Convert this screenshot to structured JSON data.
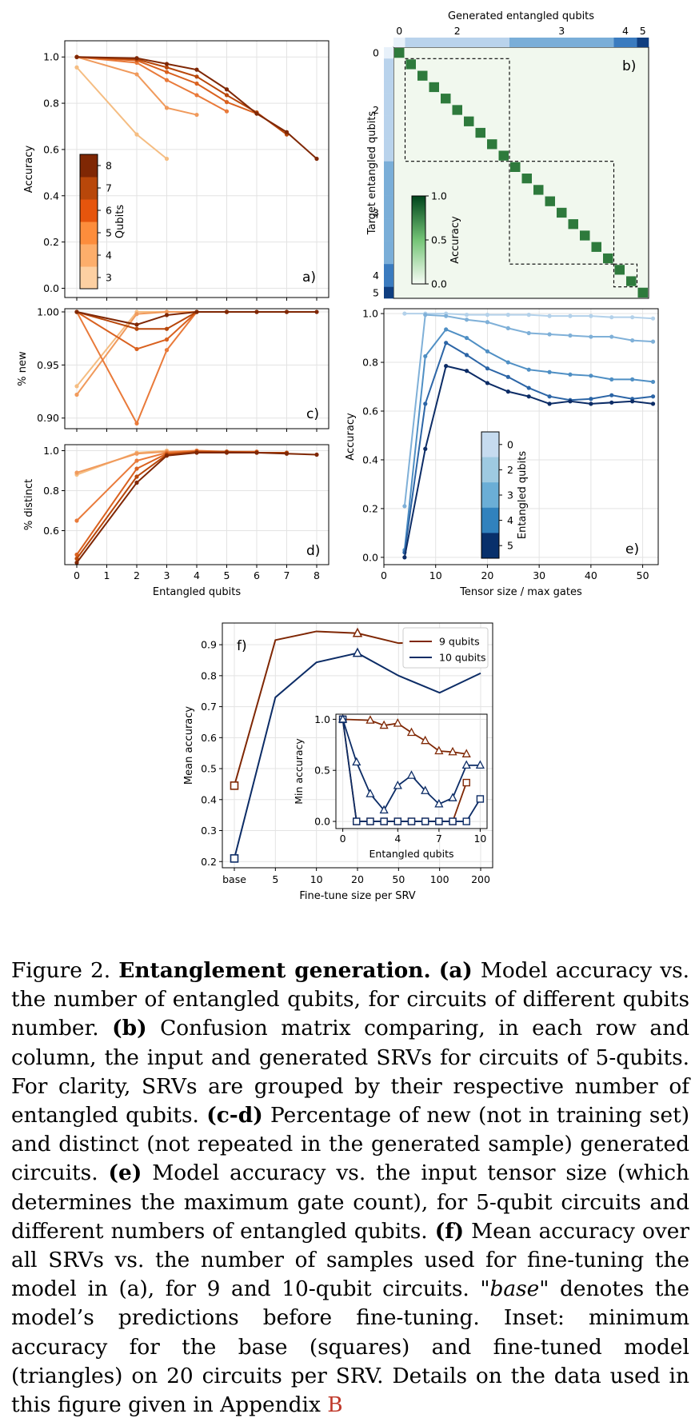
{
  "chart_data": [
    {
      "id": "a",
      "type": "line",
      "panel_label": "a)",
      "xlabel": "",
      "ylabel": "Accuracy",
      "xlim": [
        -0.4,
        8.4
      ],
      "ylim": [
        -0.04,
        1.07
      ],
      "yticks": [
        0.0,
        0.2,
        0.4,
        0.6,
        0.8,
        1.0
      ],
      "grid": true,
      "colorbar": {
        "label": "Qubits",
        "ticks": [
          "3",
          "4",
          "5",
          "6",
          "7",
          "8"
        ],
        "placement": "left-center",
        "colors": [
          "#fdd0a2",
          "#fdae6b",
          "#fd8d3c",
          "#e6550d",
          "#b8470a",
          "#7f2704"
        ]
      },
      "series": [
        {
          "name": "3",
          "color": "#f5bd82",
          "x": [
            0,
            2,
            3
          ],
          "y": [
            0.955,
            0.665,
            0.56
          ]
        },
        {
          "name": "4",
          "color": "#f09a5c",
          "x": [
            0,
            2,
            3,
            4
          ],
          "y": [
            1.0,
            0.925,
            0.78,
            0.75
          ]
        },
        {
          "name": "5",
          "color": "#e97a3a",
          "x": [
            0,
            2,
            3,
            4,
            5
          ],
          "y": [
            1.0,
            0.975,
            0.9,
            0.835,
            0.765
          ]
        },
        {
          "name": "6",
          "color": "#d9611f",
          "x": [
            0,
            2,
            3,
            4,
            5,
            6
          ],
          "y": [
            1.0,
            0.985,
            0.935,
            0.885,
            0.805,
            0.755
          ]
        },
        {
          "name": "7",
          "color": "#b8470a",
          "x": [
            0,
            2,
            3,
            4,
            5,
            6,
            7
          ],
          "y": [
            1.0,
            0.99,
            0.955,
            0.915,
            0.835,
            0.76,
            0.665
          ]
        },
        {
          "name": "8",
          "color": "#7f2704",
          "x": [
            0,
            2,
            3,
            4,
            5,
            6,
            7,
            8
          ],
          "y": [
            1.0,
            0.995,
            0.97,
            0.945,
            0.86,
            0.755,
            0.675,
            0.56
          ]
        }
      ]
    },
    {
      "id": "b",
      "type": "heatmap",
      "panel_label": "b)",
      "xlabel": "Generated entangled qubits",
      "ylabel": "Target entangled qubits",
      "size": 22,
      "group_ticks": [
        "0",
        "2",
        "3",
        "4",
        "5"
      ],
      "groups": [
        [
          0,
          1
        ],
        [
          1,
          10
        ],
        [
          10,
          19
        ],
        [
          19,
          21
        ],
        [
          21,
          22
        ]
      ],
      "diagonal_accuracy": 1.0,
      "colorbar": {
        "label": "Accuracy",
        "ticks": [
          "0.0",
          "0.5",
          "1.0"
        ],
        "placement": "left-center"
      }
    },
    {
      "id": "c",
      "type": "line",
      "panel_label": "c)",
      "xlabel": "",
      "ylabel": "% new",
      "xlim": [
        -0.4,
        8.4
      ],
      "ylim": [
        0.89,
        1.003
      ],
      "yticks": [
        0.9,
        0.95,
        1.0
      ],
      "grid": true,
      "series": [
        {
          "name": "3",
          "color": "#f5bd82",
          "x": [
            0,
            2,
            3
          ],
          "y": [
            0.93,
            1.0,
            1.0
          ]
        },
        {
          "name": "4",
          "color": "#f09a5c",
          "x": [
            0,
            2,
            3,
            4
          ],
          "y": [
            0.922,
            0.998,
            1.0,
            1.0
          ]
        },
        {
          "name": "5",
          "color": "#e97a3a",
          "x": [
            0,
            2,
            3,
            4,
            5
          ],
          "y": [
            1.0,
            0.895,
            0.964,
            1.0,
            1.0
          ]
        },
        {
          "name": "6",
          "color": "#d9611f",
          "x": [
            0,
            2,
            3,
            4,
            5,
            6
          ],
          "y": [
            1.0,
            0.965,
            0.974,
            1.0,
            1.0,
            1.0
          ]
        },
        {
          "name": "7",
          "color": "#b8470a",
          "x": [
            0,
            2,
            3,
            4,
            5,
            6,
            7
          ],
          "y": [
            1.0,
            0.984,
            0.984,
            1.0,
            1.0,
            1.0,
            1.0
          ]
        },
        {
          "name": "8",
          "color": "#7f2704",
          "x": [
            0,
            2,
            3,
            4,
            5,
            6,
            7,
            8
          ],
          "y": [
            1.0,
            0.988,
            0.997,
            1.0,
            1.0,
            1.0,
            1.0,
            1.0
          ]
        }
      ]
    },
    {
      "id": "d",
      "type": "line",
      "panel_label": "d)",
      "xlabel": "Entangled qubits",
      "ylabel": "% distinct",
      "xlim": [
        -0.4,
        8.4
      ],
      "ylim": [
        0.43,
        1.03
      ],
      "yticks": [
        0.6,
        0.8,
        1.0
      ],
      "xticks": [
        0,
        1,
        2,
        3,
        4,
        5,
        6,
        7,
        8
      ],
      "grid": true,
      "series": [
        {
          "name": "3",
          "color": "#f5bd82",
          "x": [
            0,
            2,
            3
          ],
          "y": [
            0.88,
            0.99,
            1.0
          ]
        },
        {
          "name": "4",
          "color": "#f09a5c",
          "x": [
            0,
            2,
            3,
            4
          ],
          "y": [
            0.89,
            0.985,
            0.995,
            1.0
          ]
        },
        {
          "name": "5",
          "color": "#e97a3a",
          "x": [
            0,
            2,
            3,
            4,
            5
          ],
          "y": [
            0.65,
            0.95,
            0.99,
            1.0,
            0.995
          ]
        },
        {
          "name": "6",
          "color": "#d9611f",
          "x": [
            0,
            2,
            3,
            4,
            5,
            6
          ],
          "y": [
            0.48,
            0.91,
            0.985,
            0.995,
            0.995,
            0.995
          ]
        },
        {
          "name": "7",
          "color": "#b8470a",
          "x": [
            0,
            2,
            3,
            4,
            5,
            6,
            7
          ],
          "y": [
            0.46,
            0.87,
            0.98,
            0.995,
            0.995,
            0.99,
            0.99
          ]
        },
        {
          "name": "8",
          "color": "#7f2704",
          "x": [
            0,
            2,
            3,
            4,
            5,
            6,
            7,
            8
          ],
          "y": [
            0.44,
            0.84,
            0.975,
            0.99,
            0.99,
            0.99,
            0.985,
            0.98
          ]
        }
      ]
    },
    {
      "id": "e",
      "type": "line",
      "panel_label": "e)",
      "xlabel": "Tensor size / max gates",
      "ylabel": "Accuracy",
      "xlim": [
        0,
        53
      ],
      "ylim": [
        -0.03,
        1.02
      ],
      "xticks": [
        0,
        10,
        20,
        30,
        40,
        50
      ],
      "yticks": [
        0.0,
        0.2,
        0.4,
        0.6,
        0.8,
        1.0
      ],
      "grid": true,
      "colorbar": {
        "label": "Entangled qubits",
        "ticks": [
          "0",
          "2",
          "3",
          "4",
          "5"
        ],
        "placement": "center",
        "colors": [
          "#c6dbef",
          "#9ecae1",
          "#6baed6",
          "#3182bd",
          "#08306b"
        ]
      },
      "series": [
        {
          "name": "0",
          "color": "#b3d1ea",
          "x": [
            4,
            8,
            12,
            16,
            20,
            24,
            28,
            32,
            36,
            40,
            44,
            48,
            52
          ],
          "y": [
            1.0,
            1.0,
            1.0,
            0.995,
            0.995,
            0.995,
            0.995,
            0.99,
            0.99,
            0.99,
            0.985,
            0.985,
            0.98
          ]
        },
        {
          "name": "2",
          "color": "#7fb0d8",
          "x": [
            4,
            8,
            12,
            16,
            20,
            24,
            28,
            32,
            36,
            40,
            44,
            48,
            52
          ],
          "y": [
            0.21,
            0.995,
            0.99,
            0.975,
            0.965,
            0.94,
            0.92,
            0.915,
            0.91,
            0.905,
            0.905,
            0.89,
            0.885
          ]
        },
        {
          "name": "3",
          "color": "#4f8fc4",
          "x": [
            4,
            8,
            12,
            16,
            20,
            24,
            28,
            32,
            36,
            40,
            44,
            48,
            52
          ],
          "y": [
            0.03,
            0.825,
            0.935,
            0.9,
            0.845,
            0.8,
            0.77,
            0.76,
            0.75,
            0.745,
            0.73,
            0.73,
            0.72
          ]
        },
        {
          "name": "4",
          "color": "#2c65a6",
          "x": [
            4,
            8,
            12,
            16,
            20,
            24,
            28,
            32,
            36,
            40,
            44,
            48,
            52
          ],
          "y": [
            0.02,
            0.63,
            0.88,
            0.83,
            0.775,
            0.74,
            0.695,
            0.66,
            0.645,
            0.65,
            0.665,
            0.65,
            0.66
          ]
        },
        {
          "name": "5",
          "color": "#0c2c66",
          "x": [
            4,
            8,
            12,
            16,
            20,
            24,
            28,
            32,
            36,
            40,
            44,
            48,
            52
          ],
          "y": [
            0.0,
            0.445,
            0.785,
            0.765,
            0.715,
            0.68,
            0.66,
            0.63,
            0.64,
            0.63,
            0.635,
            0.64,
            0.63
          ]
        }
      ]
    },
    {
      "id": "f",
      "type": "line",
      "panel_label": "f)",
      "xlabel": "Fine-tune size per SRV",
      "ylabel": "Mean accuracy",
      "categories": [
        "base",
        "5",
        "10",
        "20",
        "50",
        "100",
        "200"
      ],
      "ylim": [
        0.18,
        0.97
      ],
      "yticks": [
        0.2,
        0.3,
        0.4,
        0.5,
        0.6,
        0.7,
        0.8,
        0.9
      ],
      "grid": true,
      "legend": "top-right",
      "series": [
        {
          "name": "9 qubits",
          "color": "#7f2704",
          "values": [
            0.445,
            0.915,
            0.943,
            0.937,
            0.905,
            0.91,
            0.905
          ],
          "base_marker": "square",
          "marked_index": 3
        },
        {
          "name": "10 qubits",
          "color": "#0c2c66",
          "values": [
            0.21,
            0.73,
            0.843,
            0.873,
            0.8,
            0.745,
            0.808
          ],
          "base_marker": "square",
          "marked_index": 3
        }
      ],
      "inset": {
        "xlabel": "Entangled qubits",
        "ylabel": "Min accuracy",
        "xticks": [
          0,
          4,
          7,
          10
        ],
        "xlim": [
          -0.5,
          10.5
        ],
        "ylim": [
          -0.07,
          1.05
        ],
        "yticks": [
          0.0,
          0.5,
          1.0
        ],
        "series": [
          {
            "name": "9 qubits base",
            "color": "#7f2704",
            "marker": "square",
            "x": [
              0,
              1,
              2,
              3,
              4,
              5,
              6,
              7,
              8,
              9
            ],
            "y": [
              1.0,
              0.0,
              0.0,
              0.0,
              0.0,
              0.0,
              0.0,
              0.0,
              0.0,
              0.38
            ]
          },
          {
            "name": "9 qubits fine-tuned",
            "color": "#7f2704",
            "marker": "triangle",
            "x": [
              0,
              2,
              3,
              4,
              5,
              6,
              7,
              8,
              9
            ],
            "y": [
              1.0,
              0.99,
              0.94,
              0.96,
              0.87,
              0.79,
              0.69,
              0.68,
              0.66
            ]
          },
          {
            "name": "10 qubits base",
            "color": "#0c2c66",
            "marker": "square",
            "x": [
              0,
              1,
              2,
              3,
              4,
              5,
              6,
              7,
              8,
              9,
              10
            ],
            "y": [
              1.0,
              0.0,
              0.0,
              0.0,
              0.0,
              0.0,
              0.0,
              0.0,
              0.0,
              0.0,
              0.22
            ]
          },
          {
            "name": "10 qubits fine-tuned",
            "color": "#0c2c66",
            "marker": "triangle",
            "x": [
              0,
              1,
              2,
              3,
              4,
              5,
              6,
              7,
              8,
              9,
              10
            ],
            "y": [
              1.0,
              0.58,
              0.27,
              0.11,
              0.35,
              0.45,
              0.3,
              0.17,
              0.23,
              0.55,
              0.55
            ]
          }
        ]
      }
    }
  ],
  "caption": {
    "figure_label": "Figure 2.",
    "title": "Entanglement generation.",
    "a_label": "(a)",
    "a_text": "Model accuracy vs. the number of entangled qubits, for circuits of different qubits number.",
    "b_label": "(b)",
    "b_text": "Confusion matrix comparing, in each row and column, the input and generated SRVs for circuits of 5-qubits. For clarity, SRVs are grouped by their respective number of entangled qubits.",
    "cd_label": "(c-d)",
    "cd_text": "Percentage of new (not in training set) and distinct (not repeated in the generated sample) generated circuits.",
    "e_label": "(e)",
    "e_text": "Model accuracy vs. the input tensor size (which determines the maximum gate count), for 5-qubit circuits and different numbers of entangled qubits.",
    "f_label": "(f)",
    "f_text": "Mean accuracy over all SRVs vs. the number of samples used for fine-tuning the model in (a), for 9 and 10-qubit circuits.",
    "base_open": "\"",
    "base_word": "base",
    "base_rest": "\" denotes the model’s predictions before fine-tuning. Inset: minimum accuracy for the base (squares) and fine-tuned model (triangles) on 20 circuits per SRV. Details on the data used in this figure given in Appendix",
    "appendix_ref": "B"
  }
}
